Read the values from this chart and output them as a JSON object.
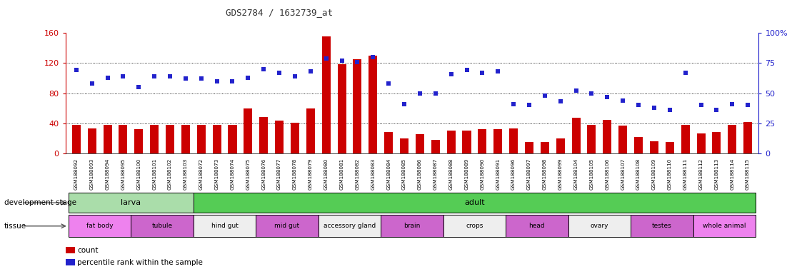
{
  "title": "GDS2784 / 1632739_at",
  "samples": [
    "GSM188092",
    "GSM188093",
    "GSM188094",
    "GSM188095",
    "GSM188100",
    "GSM188101",
    "GSM188102",
    "GSM188103",
    "GSM188072",
    "GSM188073",
    "GSM188074",
    "GSM188075",
    "GSM188076",
    "GSM188077",
    "GSM188078",
    "GSM188079",
    "GSM188080",
    "GSM188081",
    "GSM188082",
    "GSM188083",
    "GSM188084",
    "GSM188085",
    "GSM188086",
    "GSM188087",
    "GSM188088",
    "GSM188089",
    "GSM188090",
    "GSM188091",
    "GSM188096",
    "GSM188097",
    "GSM188098",
    "GSM188099",
    "GSM188104",
    "GSM188105",
    "GSM188106",
    "GSM188107",
    "GSM188108",
    "GSM188109",
    "GSM188110",
    "GSM188111",
    "GSM188112",
    "GSM188113",
    "GSM188114",
    "GSM188115"
  ],
  "count": [
    38,
    33,
    38,
    38,
    32,
    38,
    38,
    38,
    38,
    38,
    38,
    60,
    48,
    44,
    41,
    60,
    155,
    118,
    125,
    130,
    28,
    20,
    26,
    18,
    30,
    30,
    32,
    32,
    33,
    15,
    15,
    20,
    47,
    38,
    45,
    37,
    22,
    16,
    15,
    38,
    27,
    28,
    38,
    42
  ],
  "percentile": [
    69,
    58,
    63,
    64,
    55,
    64,
    64,
    62,
    62,
    60,
    60,
    63,
    70,
    67,
    64,
    68,
    79,
    77,
    76,
    80,
    58,
    41,
    50,
    50,
    66,
    69,
    67,
    68,
    41,
    40,
    48,
    43,
    52,
    50,
    47,
    44,
    40,
    38,
    36,
    67,
    40,
    36,
    41,
    40
  ],
  "dev_stage_groups": [
    {
      "label": "larva",
      "start": 0,
      "end": 8,
      "color": "#aaddaa"
    },
    {
      "label": "adult",
      "start": 8,
      "end": 44,
      "color": "#55cc55"
    }
  ],
  "tissue_groups": [
    {
      "label": "fat body",
      "start": 0,
      "end": 4,
      "color": "#ee82ee"
    },
    {
      "label": "tubule",
      "start": 4,
      "end": 8,
      "color": "#cc66cc"
    },
    {
      "label": "hind gut",
      "start": 8,
      "end": 12,
      "color": "#eeeeee"
    },
    {
      "label": "mid gut",
      "start": 12,
      "end": 16,
      "color": "#cc66cc"
    },
    {
      "label": "accessory gland",
      "start": 16,
      "end": 20,
      "color": "#eeeeee"
    },
    {
      "label": "brain",
      "start": 20,
      "end": 24,
      "color": "#cc66cc"
    },
    {
      "label": "crops",
      "start": 24,
      "end": 28,
      "color": "#eeeeee"
    },
    {
      "label": "head",
      "start": 28,
      "end": 32,
      "color": "#cc66cc"
    },
    {
      "label": "ovary",
      "start": 32,
      "end": 36,
      "color": "#eeeeee"
    },
    {
      "label": "testes",
      "start": 36,
      "end": 40,
      "color": "#cc66cc"
    },
    {
      "label": "whole animal",
      "start": 40,
      "end": 44,
      "color": "#ee82ee"
    }
  ],
  "bar_color": "#cc0000",
  "dot_color": "#2222cc",
  "left_ylim": [
    0,
    160
  ],
  "left_yticks": [
    0,
    40,
    80,
    120,
    160
  ],
  "right_ylim": [
    0,
    100
  ],
  "right_yticks": [
    0,
    25,
    50,
    75,
    100
  ],
  "right_yticklabels": [
    "0",
    "25",
    "50",
    "75",
    "100%"
  ],
  "grid_values": [
    40,
    80,
    120
  ],
  "bar_width": 0.55,
  "dev_stage_label": "development stage",
  "tissue_label": "tissue",
  "legend_count_label": "count",
  "legend_pct_label": "percentile rank within the sample",
  "left_axis_color": "#cc0000",
  "right_axis_color": "#2222cc"
}
